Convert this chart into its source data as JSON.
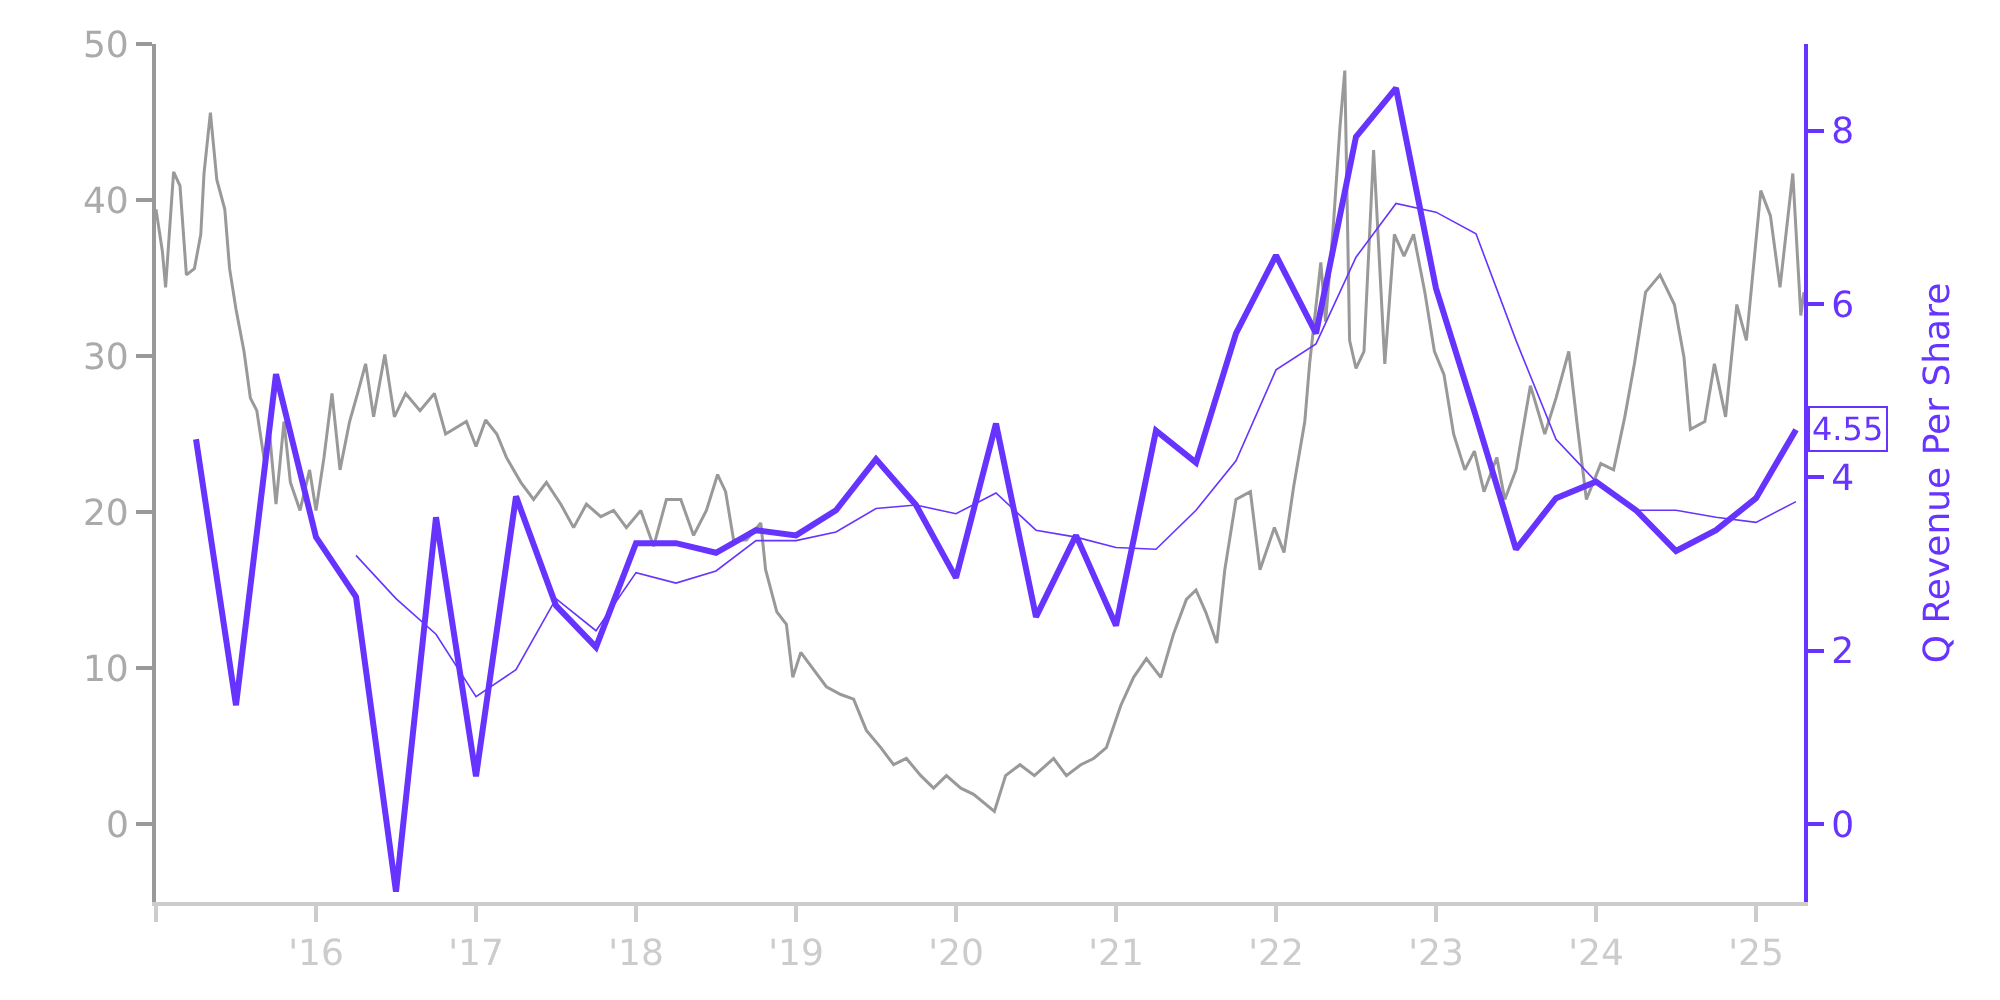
{
  "chart_data": {
    "type": "line",
    "y2label": "Q Revenue Per Share",
    "xlim": [
      2015.0,
      2025.3
    ],
    "xticks": [
      {
        "value": 2015,
        "label": null
      },
      {
        "value": 2016,
        "label": "'16"
      },
      {
        "value": 2017,
        "label": "'17"
      },
      {
        "value": 2018,
        "label": "'18"
      },
      {
        "value": 2019,
        "label": "'19"
      },
      {
        "value": 2020,
        "label": "'20"
      },
      {
        "value": 2021,
        "label": "'21"
      },
      {
        "value": 2022,
        "label": "'22"
      },
      {
        "value": 2023,
        "label": "'23"
      },
      {
        "value": 2024,
        "label": "'24"
      },
      {
        "value": 2025,
        "label": "'25"
      }
    ],
    "ylim": [
      -5,
      50
    ],
    "yticks": [
      0,
      10,
      20,
      30,
      40,
      50
    ],
    "y2lim": [
      -0.9,
      9
    ],
    "y2ticks": [
      0,
      2,
      4,
      6,
      8
    ],
    "marker": "none",
    "line_style": "solid",
    "series": [
      {
        "color": "#999999",
        "axis": "y",
        "x": [
          2015.0,
          2015.04,
          2015.06,
          2015.11,
          2015.15,
          2015.19,
          2015.24,
          2015.28,
          2015.3,
          2015.34,
          2015.38,
          2015.43,
          2015.46,
          2015.5,
          2015.55,
          2015.59,
          2015.63,
          2015.68,
          2015.71,
          2015.75,
          2015.8,
          2015.84,
          2015.9,
          2015.96,
          2016.0,
          2016.05,
          2016.1,
          2016.15,
          2016.21,
          2016.26,
          2016.31,
          2016.36,
          2016.43,
          2016.49,
          2016.56,
          2016.65,
          2016.74,
          2016.81,
          2016.94,
          2017.0,
          2017.06,
          2017.13,
          2017.19,
          2017.28,
          2017.36,
          2017.44,
          2017.53,
          2017.61,
          2017.69,
          2017.78,
          2017.86,
          2017.94,
          2018.03,
          2018.11,
          2018.19,
          2018.28,
          2018.36,
          2018.44,
          2018.51,
          2018.56,
          2018.61,
          2018.69,
          2018.78,
          2018.81,
          2018.88,
          2018.94,
          2018.98,
          2019.03,
          2019.11,
          2019.19,
          2019.28,
          2019.36,
          2019.44,
          2019.53,
          2019.61,
          2019.69,
          2019.78,
          2019.86,
          2019.94,
          2020.03,
          2020.11,
          2020.24,
          2020.31,
          2020.4,
          2020.49,
          2020.61,
          2020.69,
          2020.78,
          2020.86,
          2020.94,
          2021.03,
          2021.11,
          2021.19,
          2021.28,
          2021.36,
          2021.44,
          2021.5,
          2021.56,
          2021.63,
          2021.68,
          2021.75,
          2021.84,
          2021.9,
          2021.99,
          2022.05,
          2022.11,
          2022.18,
          2022.21,
          2022.28,
          2022.31,
          2022.36,
          2022.4,
          2022.43,
          2022.46,
          2022.5,
          2022.55,
          2022.61,
          2022.68,
          2022.74,
          2022.8,
          2022.86,
          2022.93,
          2022.99,
          2023.05,
          2023.11,
          2023.18,
          2023.24,
          2023.3,
          2023.38,
          2023.43,
          2023.5,
          2023.59,
          2023.68,
          2023.75,
          2023.83,
          2023.88,
          2023.94,
          2024.03,
          2024.11,
          2024.18,
          2024.24,
          2024.31,
          2024.4,
          2024.49,
          2024.55,
          2024.59,
          2024.68,
          2024.74,
          2024.81,
          2024.88,
          2024.94,
          2025.03,
          2025.09,
          2025.15,
          2025.23,
          2025.28,
          2025.3
        ],
        "values": [
          39.4,
          36.7,
          34.4,
          41.8,
          40.9,
          35.2,
          35.6,
          37.8,
          41.7,
          45.6,
          41.3,
          39.4,
          35.6,
          33.0,
          30.3,
          27.3,
          26.5,
          23.1,
          25.0,
          20.5,
          25.8,
          21.9,
          20.1,
          22.7,
          20.1,
          23.5,
          27.6,
          22.7,
          25.8,
          27.6,
          29.5,
          26.1,
          30.1,
          26.1,
          27.6,
          26.5,
          27.6,
          25.0,
          25.8,
          24.2,
          25.9,
          25.0,
          23.5,
          21.9,
          20.8,
          21.9,
          20.5,
          19.0,
          20.5,
          19.7,
          20.1,
          19.0,
          20.1,
          17.8,
          20.8,
          20.8,
          18.5,
          20.1,
          22.4,
          21.3,
          18.2,
          18.2,
          19.3,
          16.3,
          13.6,
          12.8,
          9.4,
          11.0,
          9.9,
          8.8,
          8.3,
          8.0,
          6.0,
          4.9,
          3.8,
          4.2,
          3.1,
          2.3,
          3.1,
          2.3,
          1.9,
          0.8,
          3.1,
          3.8,
          3.1,
          4.2,
          3.1,
          3.8,
          4.2,
          4.9,
          7.6,
          9.4,
          10.6,
          9.4,
          12.2,
          14.4,
          15.0,
          13.6,
          11.6,
          16.3,
          20.8,
          21.3,
          16.3,
          19.0,
          17.4,
          21.6,
          25.8,
          29.5,
          36.0,
          32.2,
          38.6,
          44.7,
          48.3,
          31.0,
          29.2,
          30.3,
          43.2,
          29.5,
          37.8,
          36.4,
          37.8,
          34.1,
          30.3,
          28.8,
          25.0,
          22.7,
          23.9,
          21.3,
          23.5,
          20.8,
          22.7,
          28.1,
          25.0,
          27.3,
          30.3,
          25.8,
          20.8,
          23.1,
          22.7,
          26.1,
          29.5,
          34.1,
          35.2,
          33.3,
          29.9,
          25.3,
          25.8,
          29.5,
          26.1,
          33.3,
          31.0,
          40.6,
          39.0,
          34.4,
          41.7,
          32.6,
          34.1
        ]
      },
      {
        "color": "#6633ff",
        "axis": "y2",
        "x": [
          2015.25,
          2015.5,
          2015.75,
          2016.0,
          2016.25,
          2016.5,
          2016.75,
          2017.0,
          2017.25,
          2017.5,
          2017.75,
          2018.0,
          2018.25,
          2018.5,
          2018.75,
          2019.0,
          2019.25,
          2019.5,
          2019.75,
          2020.0,
          2020.25,
          2020.5,
          2020.75,
          2021.0,
          2021.25,
          2021.5,
          2021.75,
          2022.0,
          2022.25,
          2022.5,
          2022.75,
          2023.0,
          2023.25,
          2023.5,
          2023.75,
          2024.0,
          2024.25,
          2024.5,
          2024.75,
          2025.0,
          2025.25
        ],
        "values": [
          4.44,
          1.37,
          5.19,
          3.31,
          2.62,
          -0.78,
          3.54,
          0.55,
          3.78,
          2.52,
          2.04,
          3.24,
          3.24,
          3.13,
          3.39,
          3.33,
          3.62,
          4.21,
          3.68,
          2.84,
          4.62,
          2.39,
          3.33,
          2.29,
          4.54,
          4.17,
          5.66,
          6.56,
          5.66,
          7.93,
          8.49,
          6.18,
          4.7,
          3.17,
          3.76,
          3.95,
          3.62,
          3.15,
          3.39,
          3.76,
          4.55
        ],
        "value_labels": [
          null,
          null,
          null,
          null,
          null,
          null,
          null,
          null,
          null,
          null,
          null,
          null,
          null,
          null,
          null,
          null,
          null,
          null,
          null,
          null,
          null,
          null,
          null,
          null,
          null,
          null,
          null,
          null,
          null,
          null,
          null,
          null,
          null,
          null,
          null,
          null,
          null,
          null,
          null,
          null,
          "4.55"
        ]
      },
      {
        "color": "#6633ff",
        "axis": "y2",
        "x": [
          2016.25,
          2016.5,
          2016.75,
          2017.0,
          2017.25,
          2017.5,
          2017.75,
          2018.0,
          2018.25,
          2018.5,
          2018.75,
          2019.0,
          2019.25,
          2019.5,
          2019.75,
          2020.0,
          2020.25,
          2020.5,
          2020.75,
          2021.0,
          2021.25,
          2021.5,
          2021.75,
          2022.0,
          2022.25,
          2022.5,
          2022.75,
          2023.0,
          2023.25,
          2023.5,
          2023.75,
          2024.0,
          2024.25,
          2024.5,
          2024.75,
          2025.0,
          2025.25
        ],
        "values": [
          3.1,
          2.6,
          2.19,
          1.47,
          1.78,
          2.6,
          2.23,
          2.9,
          2.78,
          2.92,
          3.27,
          3.27,
          3.37,
          3.64,
          3.68,
          3.58,
          3.82,
          3.39,
          3.31,
          3.19,
          3.17,
          3.62,
          4.19,
          5.24,
          5.54,
          6.54,
          7.16,
          7.06,
          6.81,
          5.58,
          4.44,
          3.95,
          3.62,
          3.62,
          3.54,
          3.48,
          3.72
        ]
      }
    ]
  }
}
